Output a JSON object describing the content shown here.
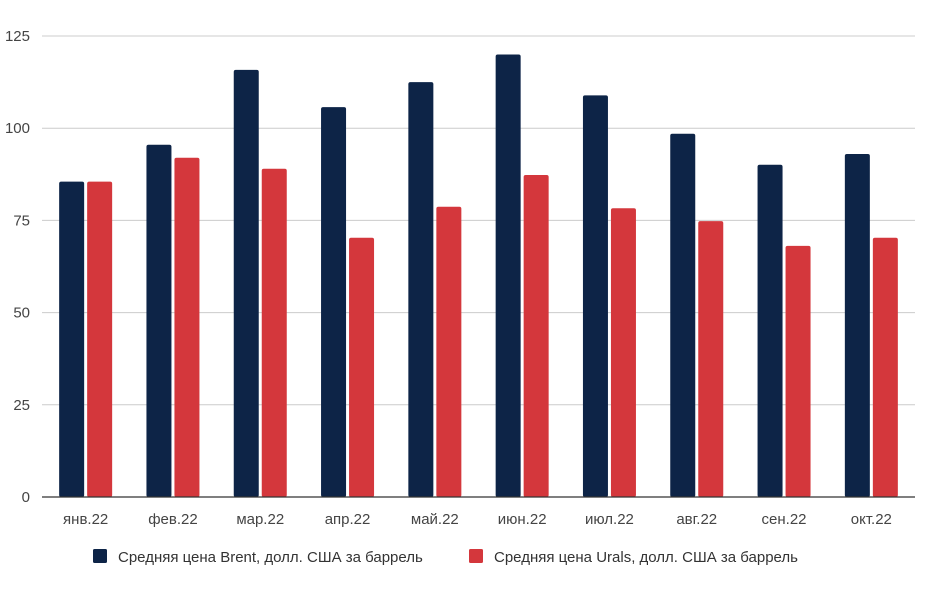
{
  "chart_data": {
    "type": "bar",
    "title": "",
    "xlabel": "",
    "ylabel": "",
    "categories": [
      "янв.22",
      "фев.22",
      "мар.22",
      "апр.22",
      "май.22",
      "июн.22",
      "июл.22",
      "авг.22",
      "сен.22",
      "окт.22"
    ],
    "series": [
      {
        "name": "Средняя цена Brent, долл. США за баррель",
        "color": "#0d2447",
        "values": [
          85.5,
          95.5,
          115.8,
          105.7,
          112.5,
          120,
          108.9,
          98.5,
          90.1,
          93
        ]
      },
      {
        "name": "Средняя цена Urals, долл. США за баррель",
        "color": "#d4373c",
        "values": [
          85.5,
          92,
          89,
          70.3,
          78.7,
          87.3,
          78.3,
          74.8,
          68.1,
          70.3
        ]
      }
    ],
    "ylim": [
      0,
      125
    ],
    "yticks": [
      0,
      25,
      50,
      75,
      100,
      125
    ],
    "grid": true,
    "legend_position": "bottom"
  }
}
